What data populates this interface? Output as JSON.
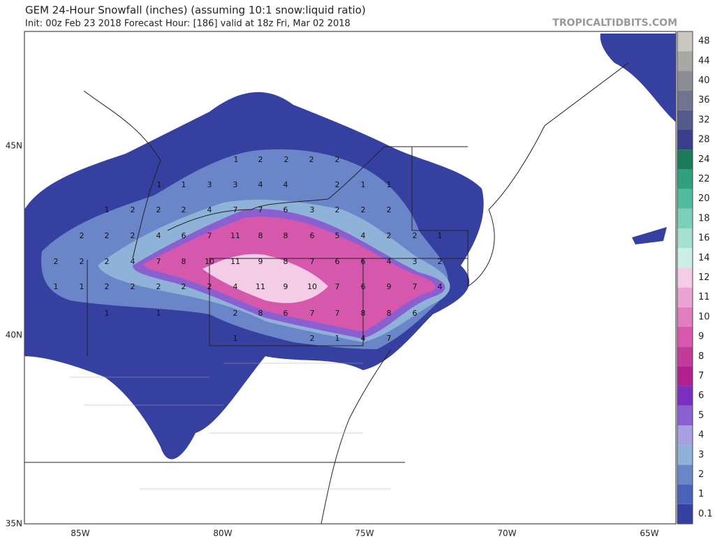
{
  "header": {
    "title": "GEM 24-Hour Snowfall (inches) (assuming 10:1 snow:liquid ratio)",
    "subtitle": "Init: 00z Feb 23 2018   Forecast Hour: [186]   valid at 18z Fri, Mar 02 2018",
    "source": "TROPICALTIDBITS.COM"
  },
  "axes": {
    "lat_labels": [
      "45N",
      "40N",
      "35N"
    ],
    "lon_labels": [
      "85W",
      "80W",
      "75W",
      "70W",
      "65W"
    ]
  },
  "legend": {
    "labels": [
      "0.1",
      "1",
      "2",
      "3",
      "4",
      "5",
      "6",
      "7",
      "8",
      "9",
      "10",
      "11",
      "12",
      "14",
      "16",
      "18",
      "20",
      "22",
      "24",
      "28",
      "32",
      "36",
      "40",
      "44",
      "48"
    ],
    "colors": [
      "#3640a0",
      "#4a62b8",
      "#6a86c8",
      "#8eb2d8",
      "#a8a0e0",
      "#8a5fd0",
      "#7a2fc0",
      "#b0208f",
      "#c43a98",
      "#d658ad",
      "#e07ec0",
      "#eaa4d2",
      "#f4cce6",
      "#cceee4",
      "#a6e0d0",
      "#7ccfb8",
      "#52bd9e",
      "#30a07e",
      "#1a7a5a",
      "#3a3e8a",
      "#555a8c",
      "#70748e",
      "#8c8e94",
      "#a8a8a4",
      "#c8c8c0"
    ]
  },
  "map": {
    "rows": [
      [
        1,
        2,
        2,
        2,
        2
      ],
      [
        1,
        1,
        3,
        3,
        4,
        4,
        2,
        1,
        1
      ],
      [
        1,
        2,
        2,
        2,
        4,
        7,
        7,
        6,
        3,
        2,
        2,
        2
      ],
      [
        2,
        2,
        2,
        4,
        6,
        7,
        11,
        8,
        8,
        6,
        5,
        4,
        2,
        2,
        1
      ],
      [
        2,
        2,
        2,
        4,
        7,
        8,
        10,
        11,
        9,
        8,
        7,
        6,
        6,
        4,
        3,
        2
      ],
      [
        1,
        1,
        2,
        2,
        2,
        2,
        2,
        4,
        11,
        9,
        10,
        7,
        6,
        9,
        7,
        4
      ],
      [
        1,
        1,
        2,
        8,
        6,
        7,
        7,
        8,
        8,
        6
      ],
      [
        1,
        2,
        1,
        4,
        7
      ]
    ]
  }
}
